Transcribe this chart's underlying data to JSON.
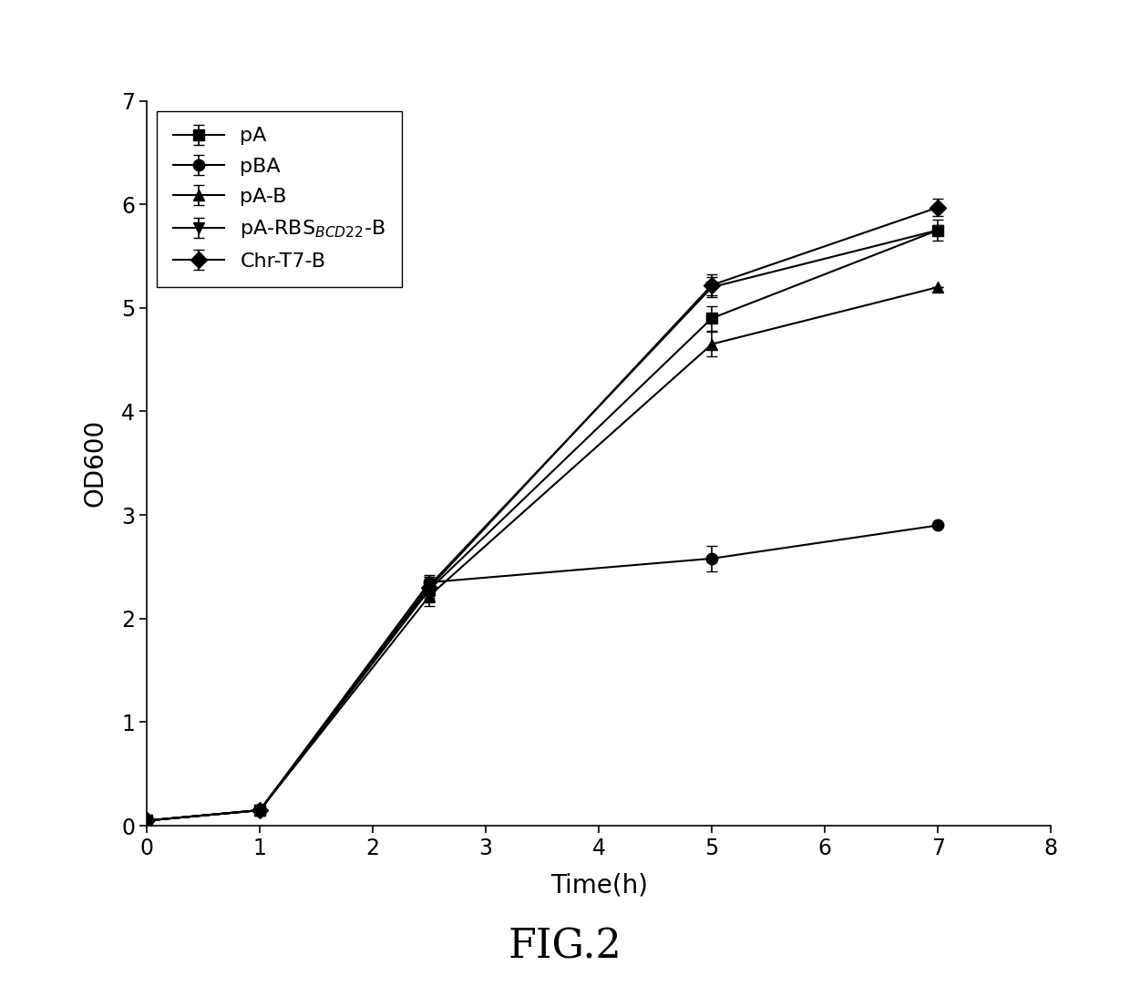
{
  "series": [
    {
      "label": "pA",
      "marker": "s",
      "x": [
        0,
        1,
        2.5,
        5,
        7
      ],
      "y": [
        0.05,
        0.15,
        2.28,
        4.9,
        5.75
      ],
      "yerr": [
        0.0,
        0.0,
        0.12,
        0.12,
        0.0
      ]
    },
    {
      "label": "pBA",
      "marker": "o",
      "x": [
        0,
        1,
        2.5,
        5,
        7
      ],
      "y": [
        0.05,
        0.15,
        2.35,
        2.58,
        2.9
      ],
      "yerr": [
        0.0,
        0.0,
        0.0,
        0.12,
        0.0
      ]
    },
    {
      "label": "pA-B",
      "marker": "^",
      "x": [
        0,
        1,
        2.5,
        5,
        7
      ],
      "y": [
        0.05,
        0.15,
        2.22,
        4.65,
        5.2
      ],
      "yerr": [
        0.0,
        0.0,
        0.1,
        0.12,
        0.0
      ]
    },
    {
      "label": "pA-RBS$_{BCD22}$-B",
      "marker": "v",
      "x": [
        0,
        1,
        2.5,
        5,
        7
      ],
      "y": [
        0.05,
        0.15,
        2.32,
        5.2,
        5.75
      ],
      "yerr": [
        0.0,
        0.0,
        0.1,
        0.1,
        0.1
      ]
    },
    {
      "label": "Chr-T7-B",
      "marker": "D",
      "x": [
        0,
        1,
        2.5,
        5,
        7
      ],
      "y": [
        0.05,
        0.15,
        2.3,
        5.22,
        5.97
      ],
      "yerr": [
        0.0,
        0.0,
        0.1,
        0.1,
        0.08
      ]
    }
  ],
  "xlabel": "Time(h)",
  "ylabel": "OD600",
  "title": "FIG.2",
  "xlim": [
    0,
    8
  ],
  "ylim": [
    0,
    7
  ],
  "xticks": [
    0,
    1,
    2,
    3,
    4,
    5,
    6,
    7,
    8
  ],
  "yticks": [
    0,
    1,
    2,
    3,
    4,
    5,
    6,
    7
  ],
  "color": "#000000",
  "linewidth": 1.5,
  "markersize": 9,
  "capsize": 4,
  "background_color": "#ffffff"
}
